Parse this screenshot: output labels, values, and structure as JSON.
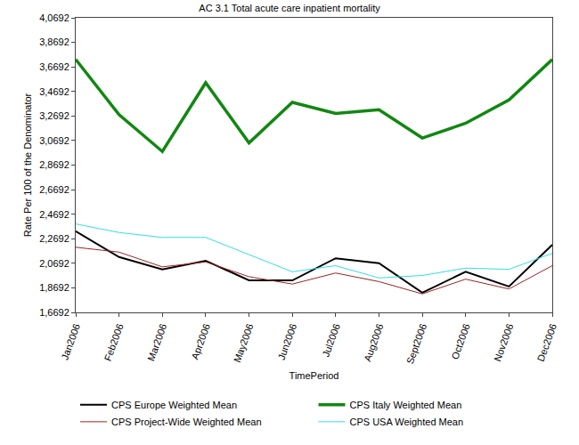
{
  "chart_data": {
    "type": "line",
    "title": "AC 3.1 Total acute care inpatient mortality",
    "x_label": "TimePeriod",
    "y_label": "Rate Per 100 of the Denominator",
    "categories": [
      "Jan2006",
      "Feb2006",
      "Mar2006",
      "Apr2006",
      "May2006",
      "Jun2006",
      "Jul2006",
      "Aug2006",
      "Sept2006",
      "Oct2006",
      "Nov2006",
      "Dec2006"
    ],
    "series": [
      {
        "name": "CPS Europe Weighted Mean",
        "color": "#000000",
        "values": [
          2.33,
          2.12,
          2.02,
          2.09,
          1.93,
          1.93,
          2.11,
          2.07,
          1.83,
          2.0,
          1.88,
          2.22
        ]
      },
      {
        "name": "CPS Italy Weighted Mean",
        "color": "#118811",
        "values": [
          3.73,
          3.28,
          2.98,
          3.54,
          3.05,
          3.38,
          3.29,
          3.32,
          3.09,
          3.21,
          3.4,
          3.73
        ]
      },
      {
        "name": "CPS Project-Wide Weighted Mean",
        "color": "#9b2323",
        "values": [
          2.2,
          2.16,
          2.04,
          2.08,
          1.96,
          1.9,
          1.99,
          1.92,
          1.82,
          1.94,
          1.86,
          2.05
        ]
      },
      {
        "name": "CPS USA Weighted Mean",
        "color": "#33dde6",
        "values": [
          2.39,
          2.32,
          2.28,
          2.28,
          2.14,
          2.0,
          2.05,
          1.95,
          1.97,
          2.03,
          2.02,
          2.15
        ]
      }
    ],
    "ylim": [
      1.6692,
      4.0692
    ],
    "yticks": [
      {
        "value": 1.6692,
        "label": "1,6692"
      },
      {
        "value": 1.8692,
        "label": "1,8692"
      },
      {
        "value": 2.0692,
        "label": "2,0692"
      },
      {
        "value": 2.2692,
        "label": "2,2692"
      },
      {
        "value": 2.4692,
        "label": "2,4692"
      },
      {
        "value": 2.6692,
        "label": "2,6692"
      },
      {
        "value": 2.8692,
        "label": "2,8692"
      },
      {
        "value": 3.0692,
        "label": "3,0692"
      },
      {
        "value": 3.2692,
        "label": "3,2692"
      },
      {
        "value": 3.4692,
        "label": "3,4692"
      },
      {
        "value": 3.6692,
        "label": "3,6692"
      },
      {
        "value": 3.8692,
        "label": "3,8692"
      },
      {
        "value": 4.0692,
        "label": "4,0692"
      }
    ],
    "grid": false,
    "legend": "bottom"
  }
}
